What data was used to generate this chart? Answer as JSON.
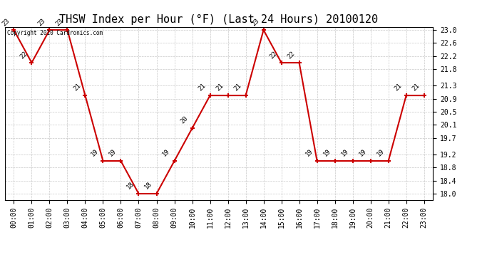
{
  "title": "THSW Index per Hour (°F) (Last 24 Hours) 20100120",
  "hours": [
    0,
    1,
    2,
    3,
    4,
    5,
    6,
    7,
    8,
    9,
    10,
    11,
    12,
    13,
    14,
    15,
    16,
    17,
    18,
    19,
    20,
    21,
    22,
    23
  ],
  "values": [
    23.0,
    22.0,
    23.0,
    23.0,
    21.0,
    19.0,
    19.0,
    18.0,
    18.0,
    19.0,
    20.0,
    21.0,
    21.0,
    21.0,
    23.0,
    22.0,
    22.0,
    19.0,
    19.0,
    19.0,
    19.0,
    19.0,
    21.0,
    21.0
  ],
  "xlabels": [
    "00:00",
    "01:00",
    "02:00",
    "03:00",
    "04:00",
    "05:00",
    "06:00",
    "07:00",
    "08:00",
    "09:00",
    "10:00",
    "11:00",
    "12:00",
    "13:00",
    "14:00",
    "15:00",
    "16:00",
    "17:00",
    "18:00",
    "19:00",
    "20:00",
    "21:00",
    "22:00",
    "23:00"
  ],
  "yticks": [
    18.0,
    18.4,
    18.8,
    19.2,
    19.7,
    20.1,
    20.5,
    20.9,
    21.3,
    21.8,
    22.2,
    22.6,
    23.0
  ],
  "ymin": 17.8,
  "ymax": 23.1,
  "line_color": "#cc0000",
  "marker_color": "#cc0000",
  "bg_color": "#ffffff",
  "grid_color": "#b0b0b0",
  "copyright_text": "Copyright 2010 Cardronics.com",
  "title_fontsize": 11,
  "label_fontsize": 7,
  "annot_fontsize": 6.5
}
